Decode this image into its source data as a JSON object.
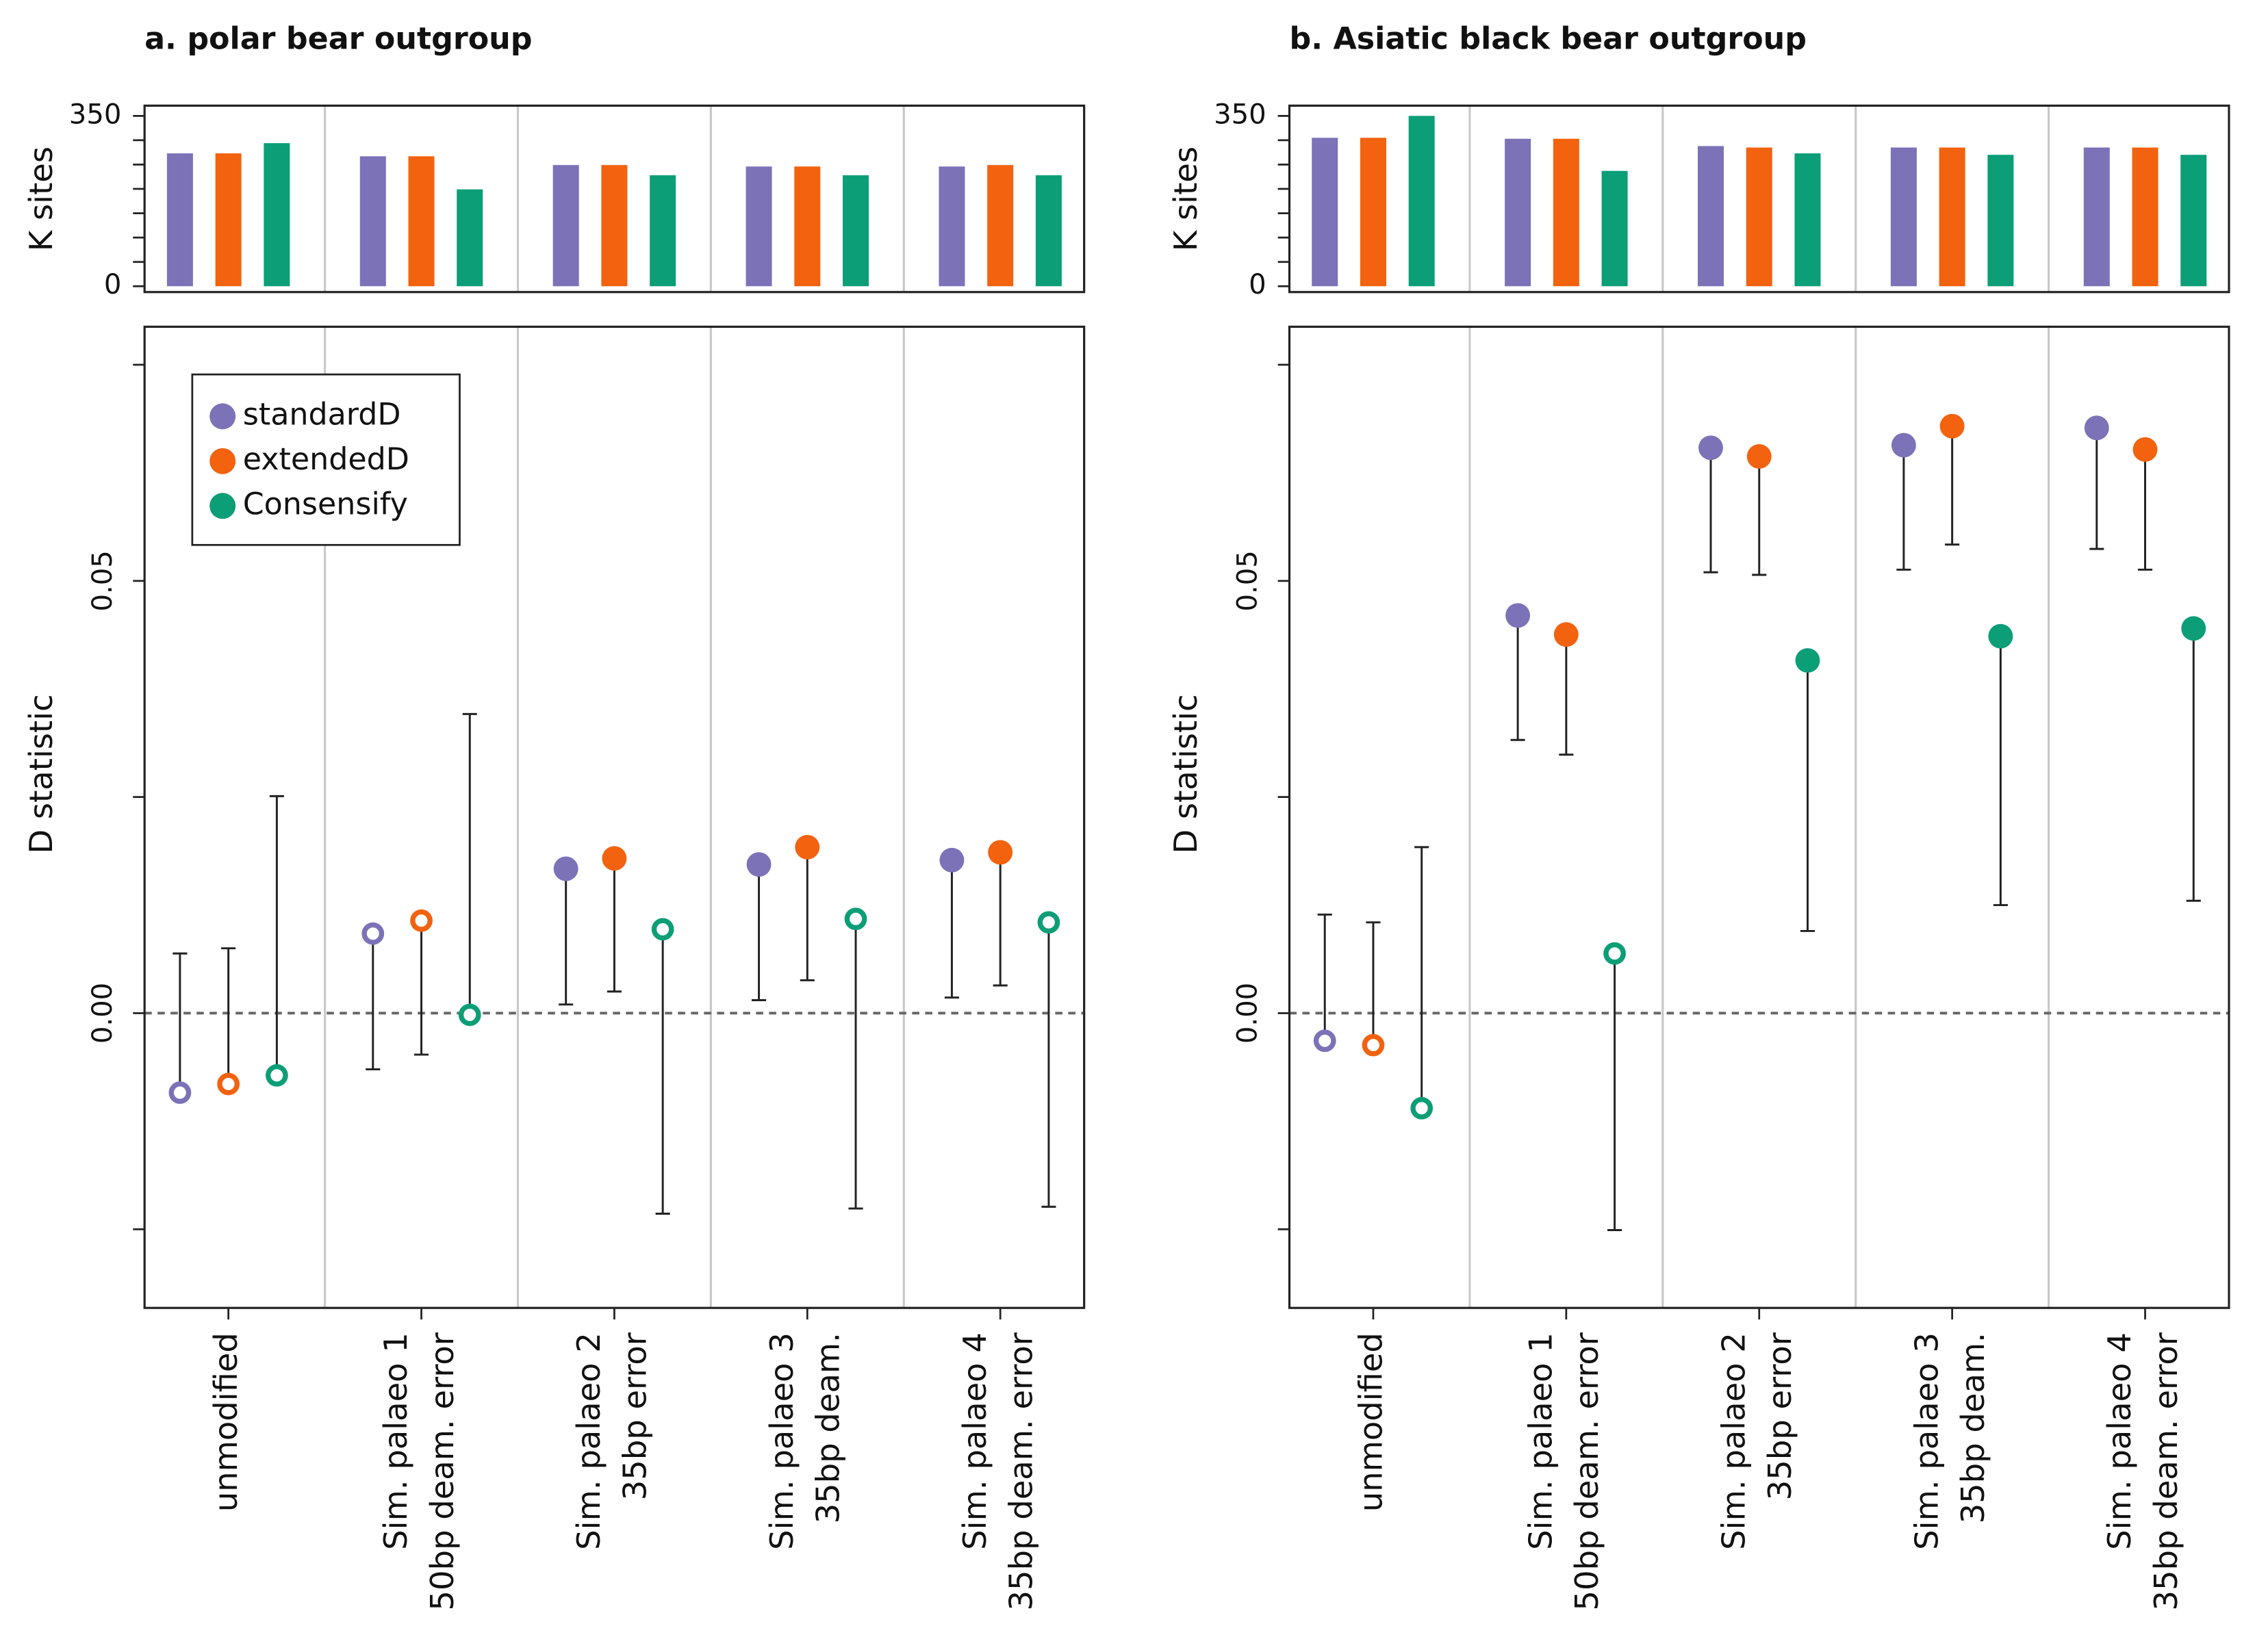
{
  "chart_data": [
    {
      "type": "bar",
      "title": "a. polar bear outgroup",
      "ylabel": "K sites",
      "ylim": [
        -12,
        371
      ],
      "yticks": [
        0,
        350
      ],
      "yminor": [
        50,
        100,
        150,
        200,
        250,
        300
      ],
      "series": [
        {
          "color": "#7b72b8",
          "values": [
            273,
            267,
            249,
            246,
            246
          ]
        },
        {
          "color": "#f2620f",
          "values": [
            273,
            267,
            249,
            246,
            249
          ]
        },
        {
          "color": "#0b9e77",
          "values": [
            294,
            199,
            228,
            228,
            228
          ]
        }
      ]
    },
    {
      "type": "dot",
      "ylabel": "D statistic",
      "ylim": [
        -0.0341,
        0.0794
      ],
      "yticks": [
        {
          "value": 0,
          "label": "0.00"
        },
        0.05
      ],
      "yminor": [
        -0.025,
        0.025,
        0.075
      ],
      "reference_line": 0,
      "legend": "top-left",
      "categories": [
        [
          "unmodified"
        ],
        [
          "Sim. palaeo 1",
          "50bp deam. error"
        ],
        [
          "Sim. palaeo 2",
          "35bp error"
        ],
        [
          "Sim. palaeo 3",
          "35bp deam."
        ],
        [
          "Sim. palaeo 4",
          "35bp deam. error"
        ]
      ],
      "series": [
        {
          "name": "standardD",
          "color": "#7b72b8",
          "values": [
            -0.0092,
            0.0092,
            0.0167,
            0.0172,
            0.0177
          ],
          "whisker_ends": [
            0.0069,
            -0.0065,
            0.001,
            0.0015,
            0.0018
          ],
          "filled": [
            false,
            false,
            true,
            true,
            true
          ]
        },
        {
          "name": "extendedD",
          "color": "#f2620f",
          "values": [
            -0.0082,
            0.0107,
            0.0179,
            0.0192,
            0.0186
          ],
          "whisker_ends": [
            0.0075,
            -0.0048,
            0.0025,
            0.0038,
            0.0032
          ],
          "filled": [
            false,
            false,
            true,
            true,
            true
          ]
        },
        {
          "name": "Consensify",
          "color": "#0b9e77",
          "values": [
            -0.0072,
            -0.0002,
            0.0097,
            0.0109,
            0.0105
          ],
          "whisker_ends": [
            0.0251,
            0.0346,
            -0.0232,
            -0.0226,
            -0.0224
          ],
          "filled": [
            false,
            false,
            false,
            false,
            false
          ]
        }
      ]
    },
    {
      "type": "bar",
      "title": "b. Asiatic black bear outgroup",
      "ylabel": "K sites",
      "ylim": [
        -12,
        371
      ],
      "yticks": [
        0,
        350
      ],
      "yminor": [
        50,
        100,
        150,
        200,
        250,
        300
      ],
      "series": [
        {
          "color": "#7b72b8",
          "values": [
            305,
            303,
            288,
            285,
            285
          ]
        },
        {
          "color": "#f2620f",
          "values": [
            305,
            303,
            285,
            285,
            285
          ]
        },
        {
          "color": "#0b9e77",
          "values": [
            350,
            237,
            273,
            270,
            270
          ]
        }
      ]
    },
    {
      "type": "dot",
      "ylabel": "D statistic",
      "ylim": [
        -0.0341,
        0.0794
      ],
      "yticks": [
        {
          "value": 0,
          "label": "0.00"
        },
        0.05
      ],
      "yminor": [
        -0.025,
        0.025,
        0.075
      ],
      "reference_line": 0,
      "categories": [
        [
          "unmodified"
        ],
        [
          "Sim. palaeo 1",
          "50bp deam. error"
        ],
        [
          "Sim. palaeo 2",
          "35bp error"
        ],
        [
          "Sim. palaeo 3",
          "35bp deam."
        ],
        [
          "Sim. palaeo 4",
          "35bp deam. error"
        ]
      ],
      "series": [
        {
          "color": "#7b72b8",
          "values": [
            -0.0032,
            0.046,
            0.0654,
            0.0657,
            0.0677
          ],
          "whisker_ends": [
            0.0114,
            0.0316,
            0.051,
            0.0513,
            0.0537
          ],
          "filled": [
            false,
            true,
            true,
            true,
            true
          ]
        },
        {
          "color": "#f2620f",
          "values": [
            -0.0037,
            0.0438,
            0.0644,
            0.0679,
            0.0652
          ],
          "whisker_ends": [
            0.0105,
            0.0299,
            0.0507,
            0.0542,
            0.0513
          ],
          "filled": [
            false,
            true,
            true,
            true,
            true
          ]
        },
        {
          "color": "#0b9e77",
          "values": [
            -0.011,
            0.0069,
            0.0408,
            0.0436,
            0.0445
          ],
          "whisker_ends": [
            0.0192,
            -0.0251,
            0.0095,
            0.0125,
            0.013
          ],
          "filled": [
            false,
            false,
            true,
            true,
            true
          ]
        }
      ]
    }
  ]
}
